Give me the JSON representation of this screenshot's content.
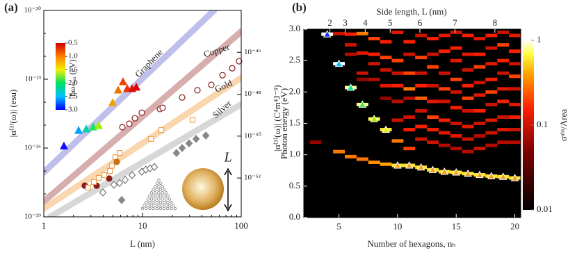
{
  "chart_data": [
    {
      "type": "loglog-scatter",
      "panel_label": "(a)",
      "x_label": "L (nm)",
      "y_label": "|α⁽³⁾(ω)| (esu)",
      "y2_label": "|α⁽³⁾(ω)| (C⁴m⁴J⁻³)",
      "xlim": [
        1,
        100
      ],
      "ylim": [
        1e-29,
        1e-20
      ],
      "y2lim": [
        1.4e-54,
        1e-44
      ],
      "log_x": true,
      "log_y": true,
      "xticks": [
        1,
        10,
        100
      ],
      "yticks": [
        {
          "value": 1e-20,
          "label": "10⁻²⁰"
        },
        {
          "value": 1e-23,
          "label": "10⁻²³"
        },
        {
          "value": 1e-26,
          "label": "10⁻²⁶"
        },
        {
          "value": 1e-29,
          "label": "10⁻²⁹"
        }
      ],
      "y2ticks": [
        {
          "value": 1e-46,
          "label": "10⁻⁴⁶"
        },
        {
          "value": 1e-48,
          "label": "10⁻⁴⁸"
        },
        {
          "value": 1e-50,
          "label": "10⁻⁵⁰"
        },
        {
          "value": 1e-52,
          "label": "10⁻⁵²"
        }
      ],
      "series": [
        {
          "name": "Graphene",
          "color": "#b4b4e8",
          "x": [
            1,
            53
          ],
          "values": [
            8.7e-28,
            1e-20
          ]
        },
        {
          "name": "Copper",
          "color": "#d0a0a0",
          "x": [
            1,
            100
          ],
          "values": [
            4.7e-29,
            1.2e-21
          ]
        },
        {
          "name": "Gold",
          "color": "#f8cfa0",
          "x": [
            1,
            100
          ],
          "values": [
            2.3e-29,
            1.15e-23
          ]
        },
        {
          "name": "Silver",
          "color": "#d0d0d0",
          "x": [
            1.16,
            100
          ],
          "values": [
            1e-29,
            8.1e-25
          ]
        }
      ],
      "points": [
        {
          "marker": "triangle",
          "filled": true,
          "x": [
            1.6,
            2.25,
            2.69,
            3.16,
            3.6,
            4.98,
            5.67,
            6.35,
            7.0,
            7.84,
            8.65
          ],
          "values": [
            1.2e-26,
            5.7e-26,
            6.6e-26,
            8.1e-26,
            9.3e-26,
            9.3e-25,
            3.3e-24,
            7.6e-24,
            3.8e-24,
            3.8e-24,
            4.4e-24
          ],
          "colors": [
            "#1010ff",
            "#00a0ff",
            "#00d0b0",
            "#20e060",
            "#a0f000",
            "#f0a000",
            "#f07000",
            "#f04000",
            "#f03000",
            "#e01010",
            "#e00000"
          ]
        },
        {
          "marker": "circle",
          "filled": false,
          "color": "#8b1a1a",
          "x": [
            6.25,
            7.35,
            8.37,
            9.84,
            15.0,
            16.0,
            25.2,
            36.0,
            49.8,
            64.6,
            81,
            95
          ],
          "values": [
            8.1e-26,
            1.15e-25,
            2e-25,
            3.5e-25,
            5e-25,
            5.7e-25,
            1.6e-24,
            3.3e-24,
            5.7e-24,
            1.5e-23,
            3e-23,
            6.1e-23
          ]
        },
        {
          "marker": "circle",
          "filled": true,
          "color": "#8b1a1a",
          "x": [
            2.6,
            3.43,
            4.59
          ],
          "values": [
            2.3e-28,
            2.3e-28,
            4.7e-28
          ]
        },
        {
          "marker": "square",
          "filled": false,
          "color": "#f0a050",
          "x": [
            2.82,
            3.21,
            3.6,
            4.1,
            4.67,
            4.9,
            5.31,
            5.86,
            12.2,
            15.5,
            32.1
          ],
          "values": [
            1.9e-28,
            3.3e-28,
            5e-28,
            6.6e-28,
            1e-27,
            1.7e-27,
            4e-27,
            6.1e-27,
            2.5e-26,
            6.1e-26,
            1.7e-25
          ]
        },
        {
          "marker": "circle",
          "filled": true,
          "color": "#c8701a",
          "x": [
            5.49
          ],
          "values": [
            2.5e-27
          ]
        },
        {
          "marker": "diamond",
          "filled": false,
          "color": "#777777",
          "x": [
            3.97,
            5.14,
            5.86,
            6.67,
            7.84,
            9.84,
            10.8,
            11.9,
            13.2
          ],
          "values": [
            1.15e-28,
            2.5e-28,
            3e-28,
            4.1e-28,
            6.6e-28,
            9.3e-28,
            1.15e-27,
            1.3e-27,
            1.5e-27
          ]
        },
        {
          "marker": "diamond",
          "filled": true,
          "color": "#888888",
          "x": [
            6.15,
            22.1,
            25.2,
            29.6,
            34.9,
            43.8
          ],
          "values": [
            5.4e-29,
            6.1e-27,
            1e-26,
            1.6e-26,
            2.5e-26,
            3.5e-26
          ]
        }
      ],
      "colorbar": {
        "label": "ħωₘₐₓ (eV)",
        "lim": [
          0.5,
          3.0
        ],
        "ticks": [
          0.5,
          {
            "value": 1,
            "label": "1.0"
          },
          1.5,
          {
            "value": 2,
            "label": "2.0"
          },
          2.5,
          {
            "value": 3,
            "label": "3.0"
          }
        ]
      },
      "inset_label": "L"
    },
    {
      "type": "heatmap",
      "panel_label": "(b)",
      "x_label": "Number of hexagons, nₕ",
      "y_label": "Photon energy (eV)",
      "x2_label": "Side length, L (nm)",
      "xlim": [
        2,
        20.5
      ],
      "ylim": [
        0,
        3
      ],
      "xticks": [
        5,
        10,
        15,
        20
      ],
      "yticks": [
        {
          "value": 0,
          "label": "0.0"
        },
        0.5,
        {
          "value": 1,
          "label": "1.0"
        },
        1.5,
        {
          "value": 2,
          "label": "2.0"
        },
        2.5,
        {
          "value": 3,
          "label": "3.0"
        }
      ],
      "x2ticks": [
        2,
        3,
        4,
        5,
        6,
        7,
        8
      ],
      "x2ticks_nh": [
        4.23,
        5.53,
        7.24,
        9.37,
        11.9,
        14.9,
        18.3
      ],
      "columns": [
        {
          "n_h": 3,
          "energies": [
            1.2
          ],
          "intensity": [
            0.06
          ]
        },
        {
          "n_h": 4,
          "energies": [
            2.92
          ],
          "intensity": [
            1
          ]
        },
        {
          "n_h": 5,
          "energies": [
            2.93,
            2.45,
            1.05
          ],
          "intensity": [
            0.1,
            1,
            0.3
          ]
        },
        {
          "n_h": 6,
          "energies": [
            2.92,
            2.75,
            2.6,
            2.07,
            0.97
          ],
          "intensity": [
            0.15,
            0.1,
            0.08,
            0.8,
            0.3
          ]
        },
        {
          "n_h": 7,
          "energies": [
            2.93,
            2.62,
            2.3,
            2.2,
            1.8,
            0.93
          ],
          "intensity": [
            0.3,
            0.12,
            0.1,
            0.06,
            0.8,
            0.3
          ]
        },
        {
          "n_h": 8,
          "energies": [
            2.85,
            2.6,
            2.45,
            2.2,
            1.57,
            0.88
          ],
          "intensity": [
            0.2,
            0.15,
            0.1,
            0.08,
            0.7,
            0.35
          ]
        },
        {
          "n_h": 9,
          "energies": [
            2.8,
            2.55,
            2.35,
            2.1,
            1.9,
            1.4,
            0.85
          ],
          "intensity": [
            0.15,
            0.2,
            0.1,
            0.12,
            0.06,
            0.6,
            0.4
          ]
        },
        {
          "n_h": 10,
          "energies": [
            2.95,
            2.5,
            2.3,
            2.1,
            1.85,
            1.55,
            1.22,
            0.83
          ],
          "intensity": [
            0.12,
            0.2,
            0.1,
            0.15,
            0.08,
            0.1,
            0.3,
            0.6
          ]
        },
        {
          "n_h": 11,
          "energies": [
            2.8,
            2.6,
            2.3,
            2.05,
            1.9,
            1.6,
            1.4,
            1.1,
            0.83
          ],
          "intensity": [
            0.15,
            0.1,
            0.2,
            0.3,
            0.08,
            0.1,
            0.15,
            0.2,
            0.6
          ]
        },
        {
          "n_h": 12,
          "energies": [
            2.9,
            2.55,
            2.3,
            2.1,
            1.9,
            1.7,
            1.45,
            1.25,
            0.8
          ],
          "intensity": [
            0.1,
            0.2,
            0.1,
            0.15,
            0.25,
            0.1,
            0.15,
            0.1,
            0.6
          ]
        },
        {
          "n_h": 13,
          "energies": [
            2.85,
            2.6,
            2.4,
            2.1,
            1.85,
            1.6,
            1.4,
            1.2,
            0.76
          ],
          "intensity": [
            0.15,
            0.1,
            0.2,
            0.1,
            0.12,
            0.2,
            0.15,
            0.1,
            0.6
          ]
        },
        {
          "n_h": 14,
          "energies": [
            2.9,
            2.65,
            2.3,
            2.05,
            1.85,
            1.55,
            1.35,
            1.15,
            0.73
          ],
          "intensity": [
            0.12,
            0.15,
            0.1,
            0.2,
            0.1,
            0.15,
            0.12,
            0.08,
            0.6
          ]
        },
        {
          "n_h": 15,
          "energies": [
            2.95,
            2.7,
            2.5,
            2.2,
            2.0,
            1.75,
            1.5,
            1.3,
            1.1,
            0.72
          ],
          "intensity": [
            0.1,
            0.15,
            0.12,
            0.2,
            0.1,
            0.15,
            0.1,
            0.12,
            0.08,
            0.6
          ]
        },
        {
          "n_h": 16,
          "energies": [
            2.9,
            2.6,
            2.35,
            2.1,
            1.9,
            1.7,
            1.45,
            1.25,
            1.05,
            0.7
          ],
          "intensity": [
            0.15,
            0.12,
            0.1,
            0.15,
            0.2,
            0.1,
            0.12,
            0.1,
            0.08,
            0.6
          ]
        },
        {
          "n_h": 17,
          "energies": [
            2.85,
            2.6,
            2.4,
            2.15,
            1.95,
            1.7,
            1.5,
            1.3,
            1.1,
            0.68
          ],
          "intensity": [
            0.12,
            0.15,
            0.2,
            0.1,
            0.12,
            0.15,
            0.1,
            0.08,
            0.1,
            0.6
          ]
        },
        {
          "n_h": 18,
          "energies": [
            2.9,
            2.7,
            2.45,
            2.2,
            2.0,
            1.8,
            1.55,
            1.35,
            1.15,
            0.66
          ],
          "intensity": [
            0.15,
            0.1,
            0.12,
            0.15,
            0.2,
            0.1,
            0.12,
            0.1,
            0.08,
            0.6
          ]
        },
        {
          "n_h": 19,
          "energies": [
            2.95,
            2.75,
            2.5,
            2.3,
            2.05,
            1.85,
            1.6,
            1.4,
            1.2,
            0.65
          ],
          "intensity": [
            0.1,
            0.2,
            0.15,
            0.1,
            0.12,
            0.15,
            0.1,
            0.12,
            0.08,
            0.6
          ]
        },
        {
          "n_h": 20,
          "energies": [
            2.9,
            2.65,
            2.45,
            2.25,
            2.05,
            1.8,
            1.6,
            1.4,
            1.2,
            0.63
          ],
          "intensity": [
            0.12,
            0.15,
            0.1,
            0.2,
            0.1,
            0.12,
            0.15,
            0.1,
            0.08,
            0.6
          ]
        }
      ],
      "peaks": {
        "x": [
          4,
          5,
          6,
          7,
          8,
          9,
          10,
          11,
          12,
          13,
          14,
          15,
          16,
          17,
          18,
          19,
          20
        ],
        "values": [
          2.92,
          2.45,
          2.07,
          1.8,
          1.57,
          1.4,
          0.83,
          0.83,
          0.8,
          0.76,
          0.73,
          0.72,
          0.7,
          0.68,
          0.66,
          0.65,
          0.63
        ],
        "colors": [
          "#2030ff",
          "#00c0ff",
          "#00e0a0",
          "#40f040",
          "#a0f000",
          "#e0f000",
          "#f0a020",
          "#f0a020",
          "#f0a020",
          "#f0a020",
          "#f0a020",
          "#f0a020",
          "#f0a020",
          "#f0a020",
          "#f0a020",
          "#f0a020",
          "#f0a020"
        ]
      },
      "colorbar": {
        "label": "σᵃᵇˢ/Area",
        "lim": [
          0.01,
          1
        ],
        "log": true,
        "ticks": [
          1,
          0.1,
          0.01
        ]
      }
    }
  ]
}
